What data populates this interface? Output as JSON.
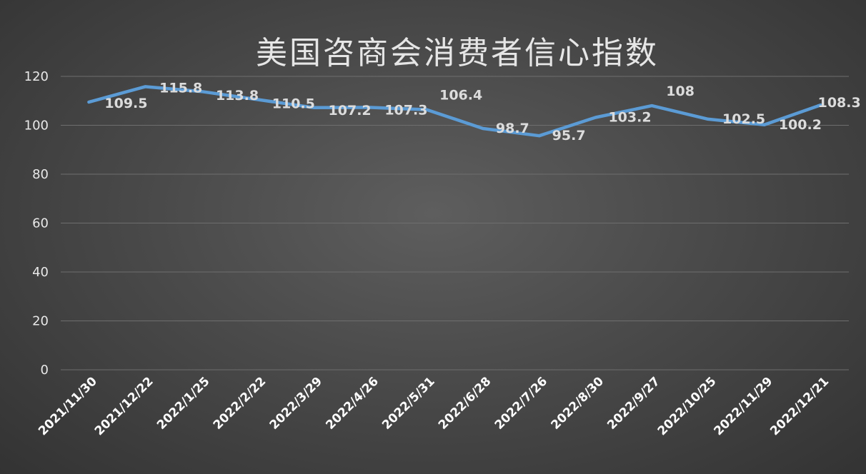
{
  "chart_data": {
    "type": "line",
    "title": "美国咨商会消费者信心指数",
    "categories": [
      "2021/11/30",
      "2021/12/22",
      "2022/1/25",
      "2022/2/22",
      "2022/3/29",
      "2022/4/26",
      "2022/5/31",
      "2022/6/28",
      "2022/7/26",
      "2022/8/30",
      "2022/9/27",
      "2022/10/25",
      "2022/11/29",
      "2022/12/21"
    ],
    "series": [
      {
        "values": [
          109.5,
          115.8,
          113.8,
          110.5,
          107.2,
          107.3,
          106.4,
          98.7,
          95.7,
          103.2,
          108,
          102.5,
          100.2,
          108.3
        ]
      }
    ],
    "data_labels": [
      "109.5",
      "115.8",
      "113.8",
      "110.5",
      "107.2",
      "107.3",
      "106.4",
      "98.7",
      "95.7",
      "103.2",
      "108",
      "102.5",
      "100.2",
      "108.3"
    ],
    "yticks": [
      "0",
      "20",
      "40",
      "60",
      "80",
      "100",
      "120"
    ],
    "ylim": [
      0,
      120
    ],
    "grid": true,
    "legend": "none",
    "colors": {
      "line": "#5b9bd5",
      "background": "#4a4a4a",
      "grid": "#6e6e6e",
      "text": "#e8e8e8"
    }
  }
}
